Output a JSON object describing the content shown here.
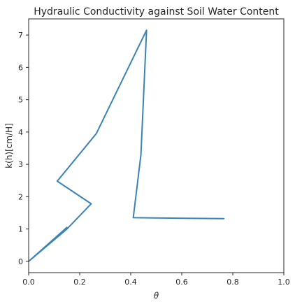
{
  "chart_data": {
    "type": "line",
    "title": "Hydraulic Conductivity against Soil Water Content",
    "xlabel": "θ",
    "ylabel": "k(h)[cm/H]",
    "xlim": [
      0.0,
      1.0
    ],
    "ylim": [
      -0.35,
      7.5
    ],
    "xticks": [
      0.0,
      0.2,
      0.4,
      0.6,
      0.8,
      1.0
    ],
    "xtick_labels": [
      "0.0",
      "0.2",
      "0.4",
      "0.6",
      "0.8",
      "1.0"
    ],
    "yticks": [
      0,
      1,
      2,
      3,
      4,
      5,
      6,
      7
    ],
    "ytick_labels": [
      "0",
      "1",
      "2",
      "3",
      "4",
      "5",
      "6",
      "7"
    ],
    "grid": false,
    "series": [
      {
        "color": "#3a84b5",
        "x": [
          0.0,
          0.15,
          0.0,
          0.15,
          0.245,
          0.112,
          0.265,
          0.462,
          0.44,
          0.41,
          0.765
        ],
        "y": [
          0.0,
          1.05,
          0.0,
          1.0,
          1.78,
          2.48,
          3.95,
          7.15,
          3.3,
          1.35,
          1.32
        ]
      }
    ]
  }
}
